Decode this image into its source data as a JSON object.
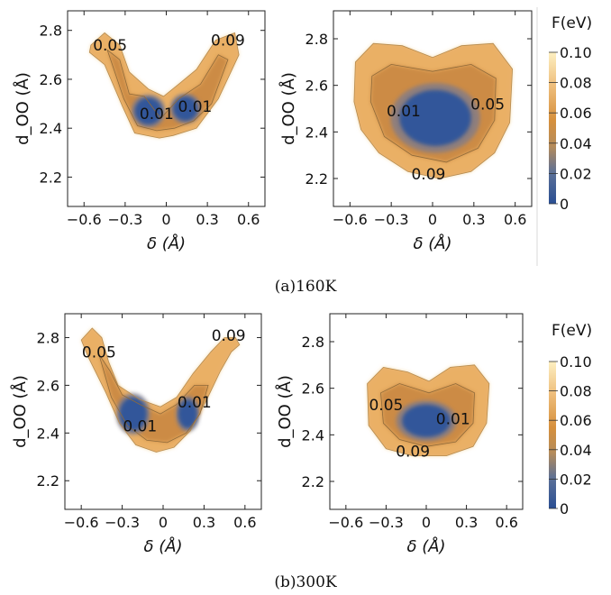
{
  "figure": {
    "captions": [
      "(a)160K",
      "(b)300K"
    ],
    "colorbar": {
      "title": "F(eV)",
      "ticks": [
        "0.10",
        "0.08",
        "0.06",
        "0.04",
        "0.02",
        "0"
      ],
      "colors": {
        "low": "#2a4f93",
        "mid": "#d68b34",
        "high": "#fdf0c2"
      }
    }
  },
  "chart_data": [
    {
      "type": "heatmap",
      "panel": "(a) left",
      "xlabel": "δ (Å)",
      "ylabel": "d_OO (Å)",
      "x_ticks": [
        -0.6,
        -0.3,
        0,
        0.3,
        0.6
      ],
      "y_ticks": [
        2.2,
        2.4,
        2.6,
        2.8
      ],
      "xlim": [
        -0.72,
        0.72
      ],
      "ylim": [
        2.08,
        2.88
      ],
      "contour_labels": [
        {
          "text": "0.05",
          "x": -0.41,
          "y": 2.74
        },
        {
          "text": "0.09",
          "x": 0.45,
          "y": 2.76
        },
        {
          "text": "0.01",
          "x": -0.07,
          "y": 2.46
        },
        {
          "text": "0.01",
          "x": 0.21,
          "y": 2.49
        }
      ],
      "minima": [
        {
          "x": -0.12,
          "y": 2.47,
          "F": 0.0
        },
        {
          "x": 0.14,
          "y": 2.48,
          "F": 0.0
        }
      ],
      "shape": "V"
    },
    {
      "type": "heatmap",
      "panel": "(a) right",
      "xlabel": "δ (Å)",
      "ylabel": "d_OO (Å)",
      "x_ticks": [
        -0.6,
        -0.3,
        0,
        0.3,
        0.6
      ],
      "y_ticks": [
        2.2,
        2.4,
        2.6,
        2.8
      ],
      "xlim": [
        -0.72,
        0.72
      ],
      "ylim": [
        2.08,
        2.92
      ],
      "contour_labels": [
        {
          "text": "0.01",
          "x": -0.21,
          "y": 2.49
        },
        {
          "text": "0.05",
          "x": 0.4,
          "y": 2.52
        },
        {
          "text": "0.09",
          "x": -0.03,
          "y": 2.22
        }
      ],
      "minima": [
        {
          "x": 0.02,
          "y": 2.46,
          "F": 0.0
        }
      ],
      "shape": "single basin"
    },
    {
      "type": "heatmap",
      "panel": "(b) left",
      "xlabel": "δ (Å)",
      "ylabel": "d_OO (Å)",
      "x_ticks": [
        -0.6,
        -0.3,
        0,
        0.3,
        0.6
      ],
      "y_ticks": [
        2.2,
        2.4,
        2.6,
        2.8
      ],
      "xlim": [
        -0.72,
        0.72
      ],
      "ylim": [
        2.08,
        2.9
      ],
      "contour_labels": [
        {
          "text": "0.05",
          "x": -0.47,
          "y": 2.74
        },
        {
          "text": "0.09",
          "x": 0.48,
          "y": 2.81
        },
        {
          "text": "0.01",
          "x": -0.17,
          "y": 2.43
        },
        {
          "text": "0.01",
          "x": 0.23,
          "y": 2.53
        }
      ],
      "minima": [
        {
          "x": -0.2,
          "y": 2.47,
          "F": 0.0
        },
        {
          "x": 0.18,
          "y": 2.47,
          "F": 0.0
        }
      ],
      "shape": "V"
    },
    {
      "type": "heatmap",
      "panel": "(b) right",
      "xlabel": "δ (Å)",
      "ylabel": "d_OO (Å)",
      "x_ticks": [
        -0.6,
        -0.3,
        0,
        0.3,
        0.6
      ],
      "y_ticks": [
        2.2,
        2.4,
        2.6,
        2.8
      ],
      "xlim": [
        -0.72,
        0.72
      ],
      "ylim": [
        2.08,
        2.92
      ],
      "contour_labels": [
        {
          "text": "0.05",
          "x": -0.3,
          "y": 2.53
        },
        {
          "text": "0.01",
          "x": 0.2,
          "y": 2.47
        },
        {
          "text": "0.09",
          "x": -0.1,
          "y": 2.33
        }
      ],
      "minima": [
        {
          "x": 0.0,
          "y": 2.46,
          "F": 0.0
        }
      ],
      "shape": "single basin"
    }
  ]
}
